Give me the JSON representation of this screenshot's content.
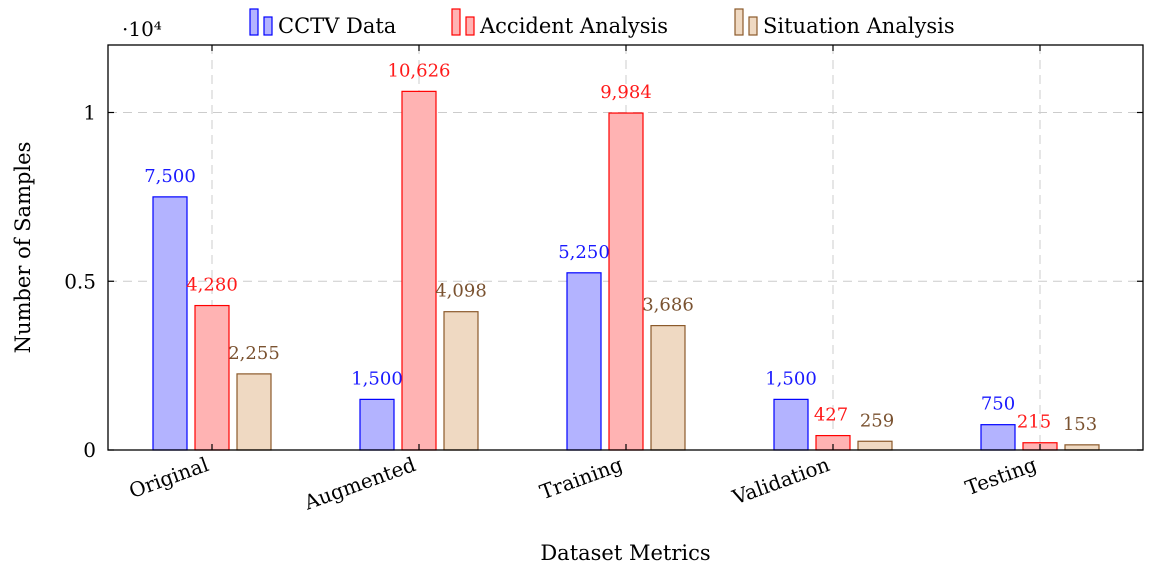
{
  "chart_data": {
    "type": "bar",
    "title": "",
    "xlabel": "Dataset Metrics",
    "ylabel": "Number of Samples",
    "y_scale_note": "·10⁴",
    "categories": [
      "Original",
      "Augmented",
      "Training",
      "Validation",
      "Testing"
    ],
    "ylim": [
      0,
      12000
    ],
    "yticks": [
      0,
      5000,
      10000
    ],
    "ytick_labels": [
      "0",
      "0.5",
      "1"
    ],
    "grid": true,
    "legend_position": "top-center",
    "series": [
      {
        "name": "CCTV Data",
        "fill": "#b3b3ff",
        "stroke": "#0000ff",
        "label_color": "#1a1aff",
        "values": [
          7500,
          1500,
          5250,
          1500,
          750
        ],
        "labels": [
          "7,500",
          "1,500",
          "5,250",
          "1,500",
          "750"
        ]
      },
      {
        "name": "Accident Analysis",
        "fill": "#ffb3b3",
        "stroke": "#ff0000",
        "label_color": "#ff1a1a",
        "values": [
          4280,
          10626,
          9984,
          427,
          215
        ],
        "labels": [
          "4,280",
          "10,626",
          "9,984",
          "427",
          "215"
        ]
      },
      {
        "name": "Situation Analysis",
        "fill": "#efd9c2",
        "stroke": "#8b5a2b",
        "label_color": "#7a5230",
        "values": [
          2255,
          4098,
          3686,
          259,
          153
        ],
        "labels": [
          "2,255",
          "4,098",
          "3,686",
          "259",
          "153"
        ]
      }
    ]
  }
}
